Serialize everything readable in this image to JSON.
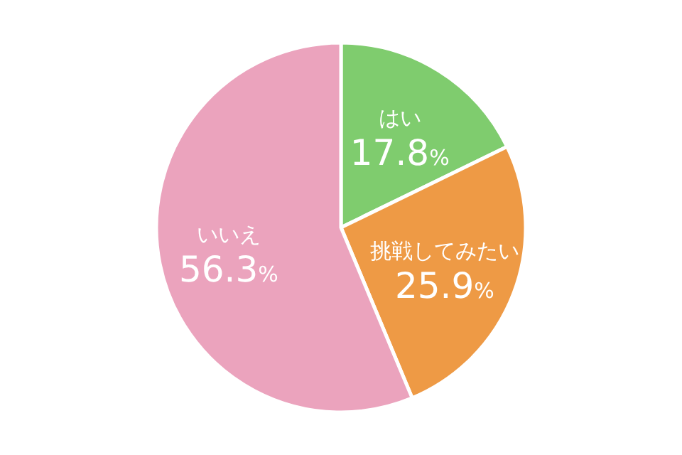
{
  "chart_data": {
    "type": "pie",
    "categories": [
      "はい",
      "挑戦してみたい",
      "いいえ"
    ],
    "values": [
      17.8,
      25.9,
      56.3
    ],
    "colors": [
      "#7fcc6e",
      "#ee9a45",
      "#eba3bd"
    ],
    "value_labels": [
      "17.8%",
      "25.9%",
      "56.3%"
    ]
  }
}
